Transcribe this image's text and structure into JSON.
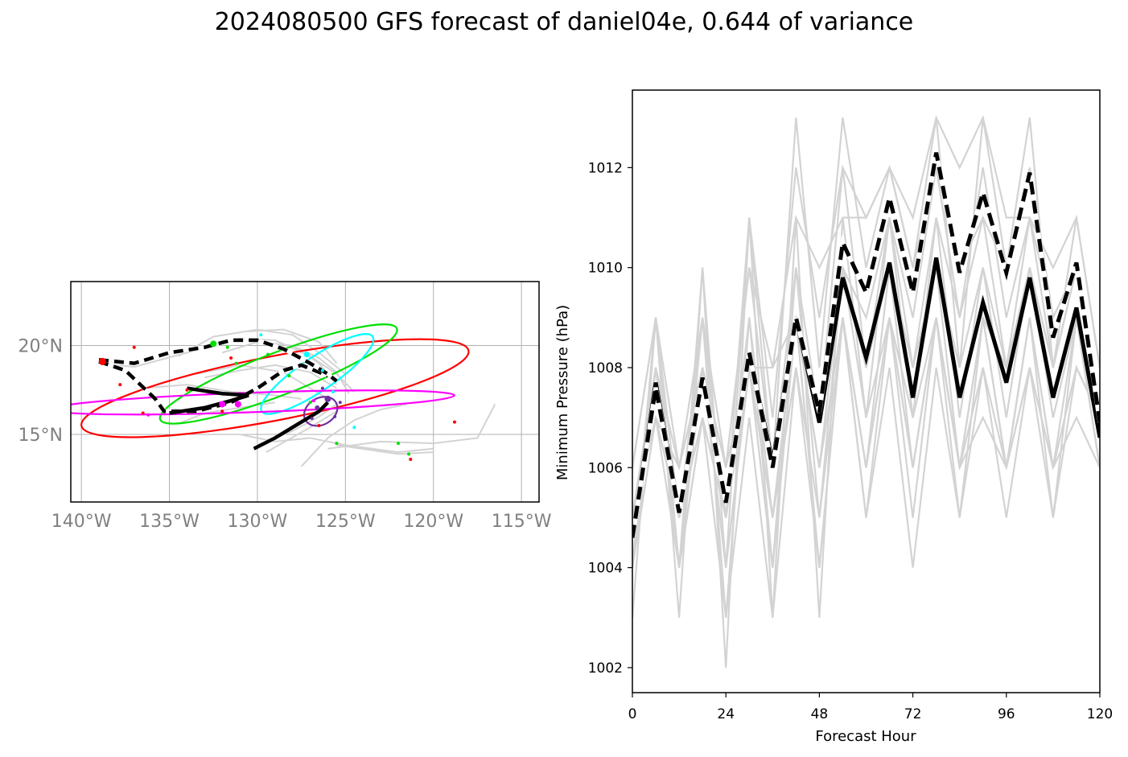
{
  "title": "2024080500 GFS forecast of daniel04e, 0.644 of variance",
  "chart_data": [
    {
      "type": "scatter",
      "panel": "map",
      "x_ticks": [
        "140°W",
        "135°W",
        "130°W",
        "125°W",
        "120°W",
        "115°W"
      ],
      "x_tick_values": [
        -140,
        -135,
        -130,
        -125,
        -120,
        -115
      ],
      "y_ticks": [
        "15°N",
        "20°N"
      ],
      "y_tick_values": [
        15,
        20
      ],
      "xlim": [
        -140.6,
        -114.0
      ],
      "ylim": [
        11.2,
        23.6
      ],
      "grid": true,
      "ensemble_tracks": [
        [
          [
            -139,
            19.0
          ],
          [
            -137,
            18.8
          ],
          [
            -134,
            19.6
          ],
          [
            -131,
            20.4
          ],
          [
            -129,
            20.3
          ],
          [
            -127,
            19.4
          ],
          [
            -125.5,
            18.4
          ],
          [
            -124.5,
            17.4
          ]
        ],
        [
          [
            -133,
            18.2
          ],
          [
            -131,
            18.6
          ],
          [
            -129,
            18.9
          ],
          [
            -127,
            18.5
          ],
          [
            -125.5,
            17.6
          ]
        ],
        [
          [
            -134.5,
            19.4
          ],
          [
            -132.5,
            20.5
          ],
          [
            -130,
            20.9
          ],
          [
            -128,
            20.6
          ],
          [
            -126.5,
            19.6
          ],
          [
            -125,
            18.4
          ]
        ],
        [
          [
            -132,
            19.6
          ],
          [
            -130,
            20.2
          ],
          [
            -128,
            20.0
          ],
          [
            -126.5,
            19.0
          ],
          [
            -125.5,
            17.8
          ]
        ],
        [
          [
            -127.5,
            13.2
          ],
          [
            -126,
            14.8
          ],
          [
            -124.5,
            15.8
          ],
          [
            -123,
            16.4
          ],
          [
            -121.5,
            16.7
          ]
        ],
        [
          [
            -129.5,
            14.0
          ],
          [
            -127,
            15.4
          ],
          [
            -125.5,
            16.3
          ]
        ],
        [
          [
            -130,
            14.4
          ],
          [
            -128,
            15.2
          ],
          [
            -126.5,
            16.0
          ],
          [
            -125.5,
            16.7
          ]
        ],
        [
          [
            -131,
            15.0
          ],
          [
            -129,
            14.6
          ],
          [
            -127,
            14.8
          ],
          [
            -125,
            14.4
          ],
          [
            -122,
            14.0
          ],
          [
            -120,
            14.2
          ]
        ],
        [
          [
            -126,
            14.2
          ],
          [
            -123,
            14.6
          ],
          [
            -120,
            14.5
          ],
          [
            -117.5,
            14.8
          ],
          [
            -116.5,
            16.7
          ]
        ],
        [
          [
            -125.5,
            14.4
          ],
          [
            -122,
            13.9
          ],
          [
            -120,
            14.0
          ]
        ],
        [
          [
            -133.5,
            18.4
          ],
          [
            -131,
            18.9
          ],
          [
            -128.5,
            18.5
          ],
          [
            -127,
            17.6
          ],
          [
            -126,
            17.0
          ]
        ],
        [
          [
            -128,
            20.0
          ],
          [
            -126.5,
            19.3
          ],
          [
            -125.5,
            18.5
          ],
          [
            -124.8,
            17.3
          ]
        ],
        [
          [
            -136.5,
            17.6
          ],
          [
            -134,
            17.8
          ],
          [
            -131.5,
            17.4
          ],
          [
            -129,
            17.2
          ],
          [
            -127.5,
            17.0
          ]
        ],
        [
          [
            -134.5,
            15.6
          ],
          [
            -133,
            16.2
          ],
          [
            -131,
            16.5
          ],
          [
            -129,
            16.8
          ]
        ],
        [
          [
            -130.5,
            20.8
          ],
          [
            -128.5,
            20.9
          ],
          [
            -126.5,
            20.2
          ],
          [
            -125.5,
            19.0
          ]
        ]
      ],
      "mean_tracks": [
        {
          "style": "dashed",
          "points": [
            [
              -139,
              19.1
            ],
            [
              -137.5,
              18.6
            ],
            [
              -135.8,
              17.0
            ],
            [
              -135.3,
              16.3
            ],
            [
              -133.5,
              16.3
            ],
            [
              -131.5,
              16.8
            ],
            [
              -130.0,
              17.6
            ],
            [
              -128.5,
              18.6
            ],
            [
              -127.5,
              18.9
            ],
            [
              -126.0,
              18.3
            ]
          ]
        },
        {
          "style": "dashed",
          "points": [
            [
              -139,
              19.2
            ],
            [
              -137,
              19.0
            ],
            [
              -135,
              19.6
            ],
            [
              -133,
              19.9
            ],
            [
              -131.5,
              20.3
            ],
            [
              -130,
              20.3
            ],
            [
              -128.5,
              19.8
            ],
            [
              -127,
              19.0
            ],
            [
              -126,
              18.4
            ],
            [
              -125.5,
              18.0
            ]
          ]
        },
        {
          "style": "solid",
          "points": [
            [
              -130.2,
              14.2
            ],
            [
              -129,
              14.8
            ],
            [
              -127.5,
              15.7
            ],
            [
              -126.5,
              16.3
            ],
            [
              -126,
              16.8
            ]
          ]
        },
        {
          "style": "solid",
          "points": [
            [
              -135,
              16.2
            ],
            [
              -133,
              16.5
            ],
            [
              -131.5,
              16.9
            ],
            [
              -130.5,
              17.2
            ],
            [
              -132,
              17.3
            ],
            [
              -134,
              17.6
            ]
          ]
        }
      ],
      "ellipses": [
        {
          "color": "#ff0000",
          "cx": -129.0,
          "cy": 17.6,
          "rx": 11.2,
          "ry": 1.8,
          "angle": -11
        },
        {
          "color": "#00e000",
          "cx": -128.8,
          "cy": 18.4,
          "rx": 7.2,
          "ry": 1.2,
          "angle": -21
        },
        {
          "color": "#00ffff",
          "cx": -126.6,
          "cy": 18.4,
          "rx": 3.8,
          "ry": 0.95,
          "angle": -34
        },
        {
          "color": "#ff00ff",
          "cx": -130.3,
          "cy": 16.8,
          "rx": 11.5,
          "ry": 0.55,
          "angle": -2
        },
        {
          "color": "#7030a0",
          "cx": -126.4,
          "cy": 16.3,
          "rx": 1.0,
          "ry": 0.75,
          "angle": -30
        }
      ],
      "points": [
        {
          "color": "#ff0000",
          "size": 4.5,
          "x": -138.8,
          "y": 19.1
        },
        {
          "color": "#ff0000",
          "size": 2,
          "x": -137.8,
          "y": 17.8
        },
        {
          "color": "#ff0000",
          "size": 2,
          "x": -137.0,
          "y": 19.9
        },
        {
          "color": "#ff0000",
          "size": 2,
          "x": -136.5,
          "y": 16.2
        },
        {
          "color": "#ff0000",
          "size": 2,
          "x": -134.0,
          "y": 17.5
        },
        {
          "color": "#ff0000",
          "size": 2,
          "x": -132.0,
          "y": 16.3
        },
        {
          "color": "#ff0000",
          "size": 2,
          "x": -131.5,
          "y": 19.3
        },
        {
          "color": "#ff0000",
          "size": 2,
          "x": -126.5,
          "y": 15.5
        },
        {
          "color": "#ff0000",
          "size": 2,
          "x": -121.3,
          "y": 13.6
        },
        {
          "color": "#ff0000",
          "size": 2,
          "x": -118.8,
          "y": 15.7
        },
        {
          "color": "#00e000",
          "size": 4,
          "x": -132.5,
          "y": 20.1
        },
        {
          "color": "#00e000",
          "size": 2,
          "x": -131.7,
          "y": 19.9
        },
        {
          "color": "#00e000",
          "size": 2,
          "x": -131.2,
          "y": 19.0
        },
        {
          "color": "#00e000",
          "size": 2,
          "x": -129.4,
          "y": 19.5
        },
        {
          "color": "#00e000",
          "size": 2,
          "x": -128.2,
          "y": 18.3
        },
        {
          "color": "#00e000",
          "size": 2,
          "x": -127.0,
          "y": 16.8
        },
        {
          "color": "#00e000",
          "size": 2,
          "x": -125.5,
          "y": 14.5
        },
        {
          "color": "#00e000",
          "size": 2,
          "x": -122.0,
          "y": 14.5
        },
        {
          "color": "#00e000",
          "size": 2,
          "x": -121.4,
          "y": 13.9
        },
        {
          "color": "#00ffff",
          "size": 3.5,
          "x": -127.2,
          "y": 19.5
        },
        {
          "color": "#00ffff",
          "size": 2,
          "x": -126.3,
          "y": 18.6
        },
        {
          "color": "#00ffff",
          "size": 2,
          "x": -125.7,
          "y": 17.4
        },
        {
          "color": "#00ffff",
          "size": 2,
          "x": -129.8,
          "y": 20.6
        },
        {
          "color": "#00ffff",
          "size": 2,
          "x": -124.5,
          "y": 15.4
        },
        {
          "color": "#ff00ff",
          "size": 4,
          "x": -132.0,
          "y": 16.7
        },
        {
          "color": "#ff00ff",
          "size": 4,
          "x": -131.1,
          "y": 16.7
        },
        {
          "color": "#ff00ff",
          "size": 2,
          "x": -136.2,
          "y": 16.1
        },
        {
          "color": "#ff00ff",
          "size": 2,
          "x": -126.8,
          "y": 16.9
        },
        {
          "color": "#7030a0",
          "size": 4,
          "x": -126.0,
          "y": 17.0
        },
        {
          "color": "#7030a0",
          "size": 3,
          "x": -126.6,
          "y": 16.5
        },
        {
          "color": "#7030a0",
          "size": 2,
          "x": -125.6,
          "y": 16.0
        },
        {
          "color": "#7030a0",
          "size": 2,
          "x": -126.9,
          "y": 15.9
        },
        {
          "color": "#7030a0",
          "size": 2,
          "x": -125.3,
          "y": 16.8
        },
        {
          "color": "#7030a0",
          "size": 2,
          "x": -126.3,
          "y": 17.6
        }
      ]
    },
    {
      "type": "line",
      "panel": "pressure",
      "xlabel": "Forecast Hour",
      "ylabel": "Minimum Pressure (hPa)",
      "xlim": [
        0,
        120
      ],
      "ylim": [
        1001.5,
        1013.55
      ],
      "x_ticks": [
        0,
        24,
        48,
        72,
        96,
        120
      ],
      "y_ticks": [
        1002,
        1004,
        1006,
        1008,
        1010,
        1012
      ],
      "x": [
        0,
        6,
        12,
        18,
        24,
        30,
        36,
        42,
        48,
        54,
        60,
        66,
        72,
        78,
        84,
        90,
        96,
        102,
        108,
        114,
        120
      ],
      "ensemble": [
        [
          1005,
          1008,
          1005,
          1008,
          1005,
          1008,
          1006,
          1009,
          1007,
          1010,
          1009,
          1011,
          1009,
          1012,
          1010,
          1011,
          1010,
          1012,
          1009,
          1010,
          1007
        ],
        [
          1004,
          1009,
          1004,
          1010,
          1004,
          1011,
          1006,
          1013,
          1008,
          1013,
          1010,
          1012,
          1010,
          1013,
          1008,
          1013,
          1010,
          1013,
          1008,
          1011,
          1008
        ],
        [
          1006,
          1009,
          1005,
          1009,
          1005,
          1011,
          1007,
          1012,
          1009,
          1012,
          1011,
          1012,
          1011,
          1013,
          1012,
          1013,
          1011,
          1011,
          1010,
          1011,
          1008
        ],
        [
          1005,
          1008,
          1006,
          1009,
          1006,
          1010,
          1008,
          1011,
          1010,
          1011,
          1011,
          1012,
          1010,
          1012,
          1009,
          1012,
          1009,
          1011,
          1009,
          1010,
          1007
        ],
        [
          1006,
          1009,
          1006,
          1008,
          1006,
          1010,
          1006,
          1010,
          1007,
          1012,
          1008,
          1011,
          1008,
          1011,
          1009,
          1011,
          1008,
          1011,
          1008,
          1010,
          1007
        ],
        [
          1003,
          1009,
          1003,
          1010,
          1002,
          1011,
          1003,
          1011,
          1003,
          1011,
          1007,
          1011,
          1007,
          1011,
          1007,
          1010,
          1007,
          1010,
          1007,
          1009,
          1006
        ],
        [
          1005,
          1007,
          1006,
          1008,
          1006,
          1008,
          1008,
          1009,
          1006,
          1010,
          1008,
          1010,
          1008,
          1010,
          1006,
          1009,
          1008,
          1010,
          1008,
          1010,
          1007
        ],
        [
          1004,
          1009,
          1004,
          1009,
          1003,
          1009,
          1004,
          1010,
          1005,
          1009,
          1006,
          1010,
          1006,
          1009,
          1006,
          1009,
          1006,
          1009,
          1006,
          1009,
          1006
        ],
        [
          1005,
          1007,
          1005,
          1007,
          1005,
          1009,
          1005,
          1009,
          1006,
          1009,
          1006,
          1009,
          1006,
          1009,
          1005,
          1009,
          1006,
          1009,
          1005,
          1009,
          1006
        ],
        [
          1004,
          1008,
          1004,
          1008,
          1004,
          1008,
          1004,
          1009,
          1004,
          1009,
          1005,
          1008,
          1004,
          1008,
          1005,
          1008,
          1005,
          1008,
          1005,
          1008,
          1007
        ],
        [
          1005,
          1008,
          1004,
          1007,
          1003,
          1007,
          1003,
          1008,
          1004,
          1009,
          1005,
          1009,
          1005,
          1009,
          1006,
          1007,
          1006,
          1008,
          1006,
          1008,
          1007
        ],
        [
          1005,
          1008,
          1005,
          1008,
          1004,
          1008,
          1004,
          1009,
          1004,
          1009,
          1006,
          1009,
          1006,
          1009,
          1006,
          1009,
          1006,
          1009,
          1006,
          1008,
          1007
        ],
        [
          1004,
          1008,
          1005,
          1008,
          1005,
          1008,
          1005,
          1008,
          1005,
          1010,
          1007,
          1009,
          1007,
          1009,
          1006,
          1008,
          1006,
          1008,
          1006,
          1007,
          1006
        ],
        [
          1004,
          1007,
          1004,
          1007,
          1005,
          1008,
          1005,
          1009,
          1006,
          1010,
          1008,
          1010,
          1008,
          1010,
          1008,
          1010,
          1008,
          1010,
          1008,
          1010,
          1007
        ]
      ],
      "series": [
        {
          "style": "solid",
          "values": [
            1004.6,
            1007.7,
            1005.1,
            1007.8,
            1005.3,
            1008.3,
            1006.1,
            1009.0,
            1006.9,
            1009.8,
            1008.2,
            1010.1,
            1007.4,
            1010.2,
            1007.4,
            1009.3,
            1007.7,
            1009.8,
            1007.4,
            1009.2,
            1006.6
          ]
        },
        {
          "style": "dashed",
          "values": [
            1004.6,
            1007.6,
            1005.1,
            1007.8,
            1005.3,
            1008.3,
            1006.0,
            1009.0,
            1007.1,
            1010.5,
            1009.5,
            1011.4,
            1009.5,
            1012.3,
            1009.9,
            1011.5,
            1009.9,
            1011.9,
            1008.6,
            1010.1,
            1006.9
          ]
        }
      ]
    }
  ]
}
